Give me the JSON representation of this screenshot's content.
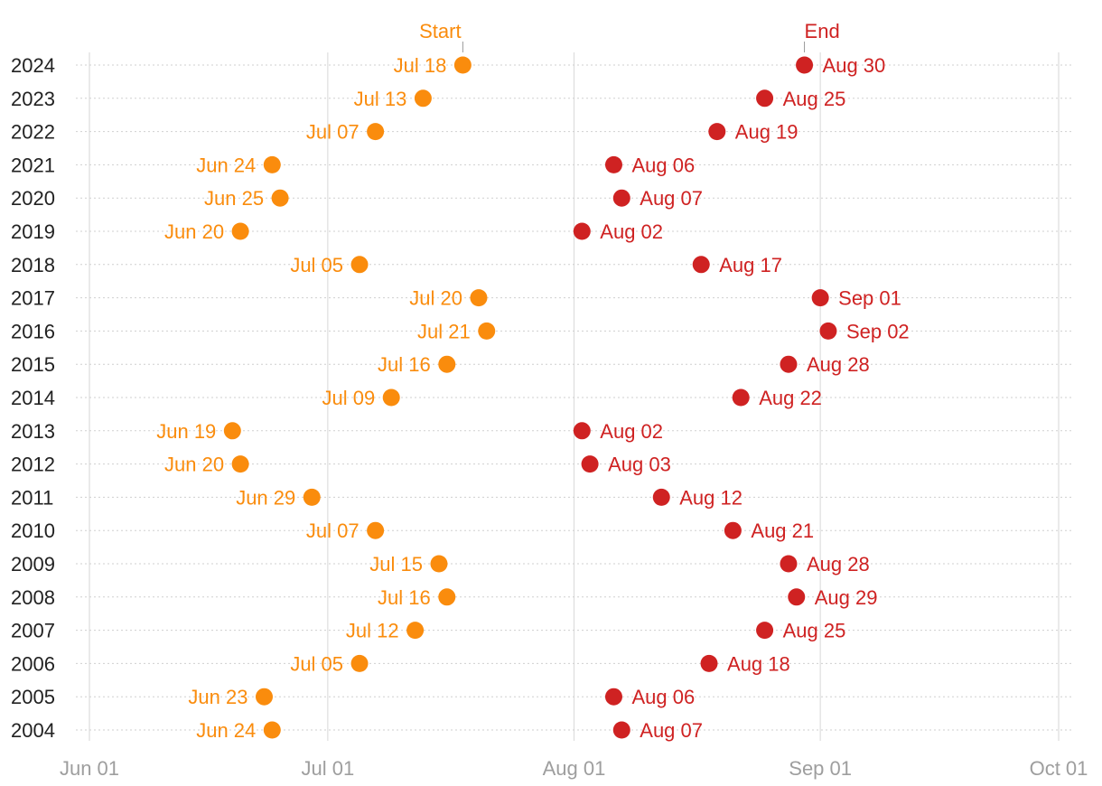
{
  "colors": {
    "start": "#fa8c0d",
    "end": "#cf2222",
    "bar_start": "#fcc27d",
    "bar_end": "#e8918f",
    "grid": "#dddddd",
    "row_grid": "#cfcfcf",
    "tick_text": "#9e9e9e",
    "year_text": "#222222"
  },
  "chart_data": {
    "type": "dumbbell",
    "legend": {
      "start": "Start",
      "end": "End"
    },
    "x_ticks": [
      {
        "label": "Jun 01",
        "day": 0
      },
      {
        "label": "Jul 01",
        "day": 30
      },
      {
        "label": "Aug 01",
        "day": 61
      },
      {
        "label": "Sep 01",
        "day": 92
      },
      {
        "label": "Oct 01",
        "day": 122
      }
    ],
    "x_range_days": [
      0,
      122
    ],
    "rows": [
      {
        "year": "2024",
        "start": "Jul 18",
        "end": "Aug 30",
        "start_day": 47,
        "end_day": 90
      },
      {
        "year": "2023",
        "start": "Jul 13",
        "end": "Aug 25",
        "start_day": 42,
        "end_day": 85
      },
      {
        "year": "2022",
        "start": "Jul 07",
        "end": "Aug 19",
        "start_day": 36,
        "end_day": 79
      },
      {
        "year": "2021",
        "start": "Jun 24",
        "end": "Aug 06",
        "start_day": 23,
        "end_day": 66
      },
      {
        "year": "2020",
        "start": "Jun 25",
        "end": "Aug 07",
        "start_day": 24,
        "end_day": 67
      },
      {
        "year": "2019",
        "start": "Jun 20",
        "end": "Aug 02",
        "start_day": 19,
        "end_day": 62
      },
      {
        "year": "2018",
        "start": "Jul 05",
        "end": "Aug 17",
        "start_day": 34,
        "end_day": 77
      },
      {
        "year": "2017",
        "start": "Jul 20",
        "end": "Sep 01",
        "start_day": 49,
        "end_day": 92
      },
      {
        "year": "2016",
        "start": "Jul 21",
        "end": "Sep 02",
        "start_day": 50,
        "end_day": 93
      },
      {
        "year": "2015",
        "start": "Jul 16",
        "end": "Aug 28",
        "start_day": 45,
        "end_day": 88
      },
      {
        "year": "2014",
        "start": "Jul 09",
        "end": "Aug 22",
        "start_day": 38,
        "end_day": 82
      },
      {
        "year": "2013",
        "start": "Jun 19",
        "end": "Aug 02",
        "start_day": 18,
        "end_day": 62
      },
      {
        "year": "2012",
        "start": "Jun 20",
        "end": "Aug 03",
        "start_day": 19,
        "end_day": 63
      },
      {
        "year": "2011",
        "start": "Jun 29",
        "end": "Aug 12",
        "start_day": 28,
        "end_day": 72
      },
      {
        "year": "2010",
        "start": "Jul 07",
        "end": "Aug 21",
        "start_day": 36,
        "end_day": 81
      },
      {
        "year": "2009",
        "start": "Jul 15",
        "end": "Aug 28",
        "start_day": 44,
        "end_day": 88
      },
      {
        "year": "2008",
        "start": "Jul 16",
        "end": "Aug 29",
        "start_day": 45,
        "end_day": 89
      },
      {
        "year": "2007",
        "start": "Jul 12",
        "end": "Aug 25",
        "start_day": 41,
        "end_day": 85
      },
      {
        "year": "2006",
        "start": "Jul 05",
        "end": "Aug 18",
        "start_day": 34,
        "end_day": 78
      },
      {
        "year": "2005",
        "start": "Jun 23",
        "end": "Aug 06",
        "start_day": 22,
        "end_day": 66
      },
      {
        "year": "2004",
        "start": "Jun 24",
        "end": "Aug 07",
        "start_day": 23,
        "end_day": 67
      }
    ]
  }
}
